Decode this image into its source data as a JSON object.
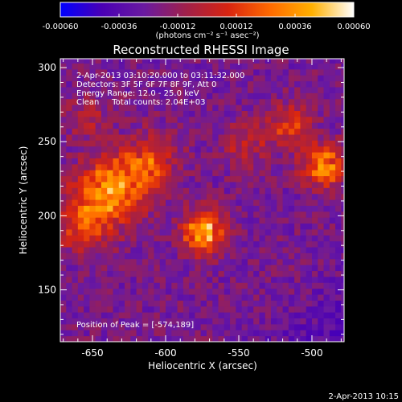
{
  "chart_data": {
    "type": "heatmap",
    "title": "Reconstructed RHESSI Image",
    "xlabel": "Heliocentric X (arcsec)",
    "ylabel": "Heliocentric Y (arcsec)",
    "xlim": [
      -672,
      -478
    ],
    "ylim": [
      115,
      306
    ],
    "xticks": [
      -650,
      -600,
      -550,
      -500
    ],
    "yticks": [
      150,
      200,
      250,
      300
    ],
    "xtick_labels": [
      "-650",
      "-600",
      "-550",
      "-500"
    ],
    "ytick_labels": [
      "150",
      "200",
      "250",
      "300"
    ],
    "colorbar": {
      "range": [
        -0.0006,
        0.0006
      ],
      "ticks": [
        "-0.00060",
        "-0.00036",
        "-0.00012",
        "0.00012",
        "0.00036",
        "0.00060"
      ],
      "units_label": "(photons cm⁻² s⁻¹ asec⁻²)",
      "colors": [
        "#0000ff",
        "#4a00b4",
        "#6a1aa0",
        "#a0204a",
        "#d82410",
        "#ff6a00",
        "#ffb000",
        "#ffffff"
      ]
    },
    "annotations": [
      "2-Apr-2013 03:10:20.000 to 03:11:32.000",
      "Detectors: 3F 5F 6F 7F 8F 9F, Att 0",
      "Energy Range: 12.0 - 25.0 keV",
      "Clean     Total counts: 2.04E+03"
    ],
    "peak_label": "Position of Peak = [-574,189]",
    "peak": {
      "x": -574,
      "y": 189
    },
    "sources": [
      {
        "x": -640,
        "y": 215,
        "amp": 0.0006,
        "sigma": 16
      },
      {
        "x": -574,
        "y": 189,
        "amp": 0.00062,
        "sigma": 10
      },
      {
        "x": -612,
        "y": 236,
        "amp": 0.00038,
        "sigma": 13
      },
      {
        "x": -658,
        "y": 192,
        "amp": 0.00032,
        "sigma": 11
      },
      {
        "x": -492,
        "y": 234,
        "amp": 0.00055,
        "sigma": 10
      },
      {
        "x": -515,
        "y": 262,
        "amp": 0.00032,
        "sigma": 10
      },
      {
        "x": -545,
        "y": 248,
        "amp": 0.0002,
        "sigma": 12
      },
      {
        "x": -655,
        "y": 268,
        "amp": 0.00018,
        "sigma": 10
      }
    ]
  },
  "footer": {
    "timestamp": "2-Apr-2013 10:15"
  }
}
